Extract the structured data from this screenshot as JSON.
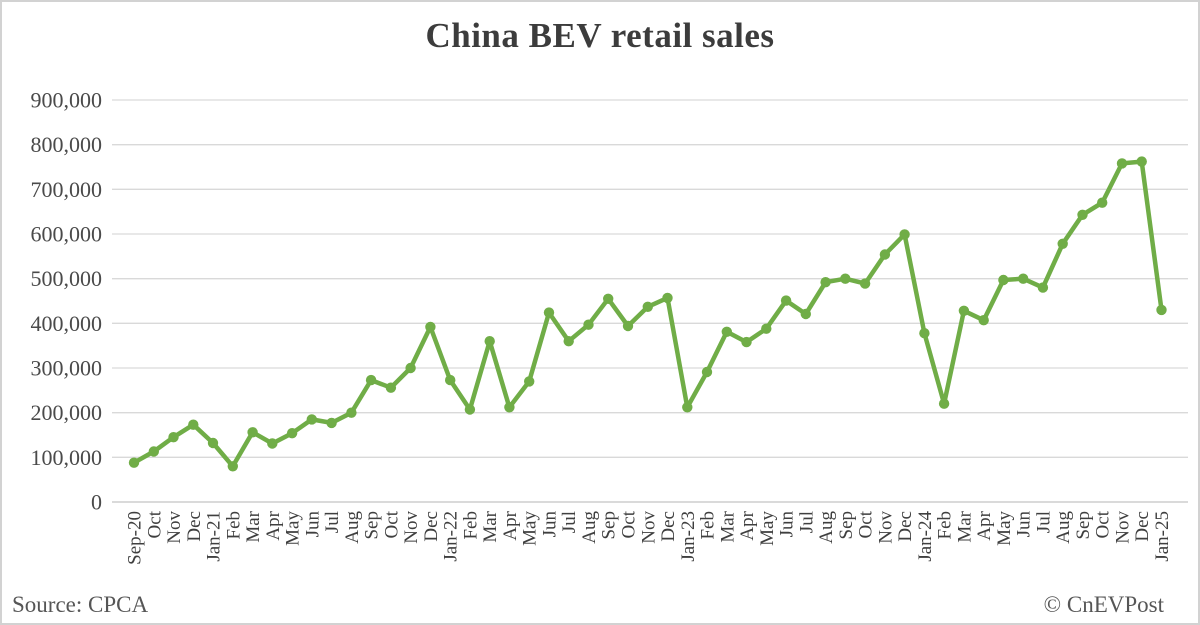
{
  "chart_data": {
    "type": "line",
    "title": "China BEV retail sales",
    "xlabel": "",
    "ylabel": "",
    "ylim": [
      0,
      900000
    ],
    "ytick_interval": 100000,
    "grid": "horizontal",
    "legend": "none",
    "line_color": "#70ad47",
    "grid_color": "#d9d9d9",
    "axis_zero_color": "#c3c3c3",
    "marker": "circle",
    "categories": [
      "Sep-20",
      "Oct",
      "Nov",
      "Dec",
      "Jan-21",
      "Feb",
      "Mar",
      "Apr",
      "May",
      "Jun",
      "Jul",
      "Aug",
      "Sep",
      "Oct",
      "Nov",
      "Dec",
      "Jan-22",
      "Feb",
      "Mar",
      "Apr",
      "May",
      "Jun",
      "Jul",
      "Aug",
      "Sep",
      "Oct",
      "Nov",
      "Dec",
      "Jan-23",
      "Feb",
      "Mar",
      "Apr",
      "May",
      "Jun",
      "Jul",
      "Aug",
      "Sep",
      "Oct",
      "Nov",
      "Dec",
      "Jan-24",
      "Feb",
      "Mar",
      "Apr",
      "May",
      "Jun",
      "Jul",
      "Aug",
      "Sep",
      "Oct",
      "Nov",
      "Dec",
      "Jan-25"
    ],
    "series": [
      {
        "name": "BEV retail sales",
        "values": [
          88000,
          113000,
          145000,
          173000,
          132000,
          80000,
          156000,
          131000,
          154000,
          185000,
          177000,
          200000,
          273000,
          256000,
          300000,
          392000,
          273000,
          207000,
          360000,
          212000,
          270000,
          424000,
          360000,
          397000,
          455000,
          394000,
          437000,
          457000,
          212000,
          291000,
          381000,
          358000,
          388000,
          451000,
          421000,
          492000,
          500000,
          489000,
          554000,
          599000,
          378000,
          220000,
          428000,
          407000,
          497000,
          500000,
          480000,
          578000,
          643000,
          670000,
          758000,
          762000,
          430000
        ]
      }
    ]
  },
  "footer": {
    "source": "Source: CPCA",
    "copyright": "© CnEVPost"
  }
}
